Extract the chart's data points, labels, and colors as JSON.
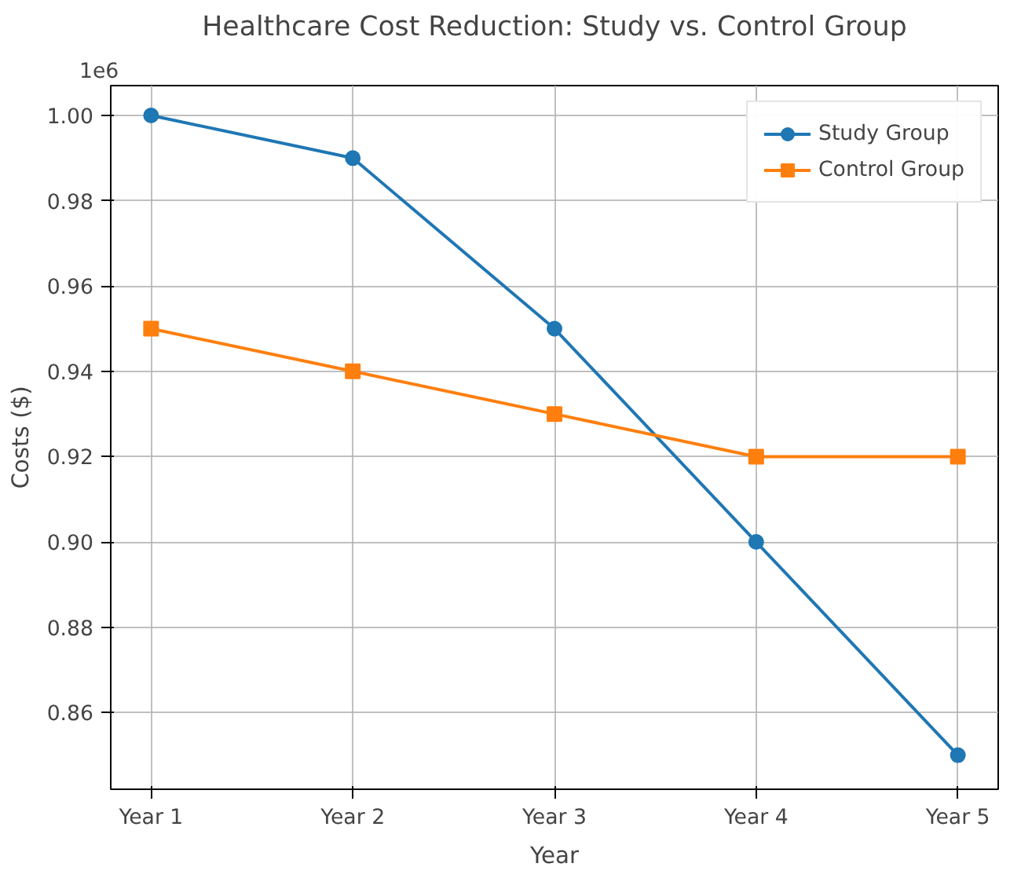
{
  "chart_data": {
    "type": "line",
    "title": "Healthcare Cost Reduction: Study vs. Control Group",
    "xlabel": "Year",
    "ylabel": "Costs ($)",
    "categories": [
      "Year 1",
      "Year 2",
      "Year 3",
      "Year 4",
      "Year 5"
    ],
    "series": [
      {
        "name": "Study Group",
        "color": "#1f77b4",
        "marker": "circle",
        "values": [
          1.0,
          0.99,
          0.95,
          0.9,
          0.85
        ]
      },
      {
        "name": "Control Group",
        "color": "#ff7f0e",
        "marker": "square",
        "values": [
          0.95,
          0.94,
          0.93,
          0.92,
          0.92
        ]
      }
    ],
    "ylim": [
      0.842,
      1.007
    ],
    "yticks": [
      0.86,
      0.88,
      {
        "value": 0.9,
        "label": "0.90"
      },
      0.92,
      0.94,
      0.96,
      0.98,
      {
        "value": 1.0,
        "label": "1.00"
      }
    ],
    "annotations": [
      "1e6"
    ],
    "grid": true,
    "legend": "top right",
    "line_style": "solid"
  }
}
